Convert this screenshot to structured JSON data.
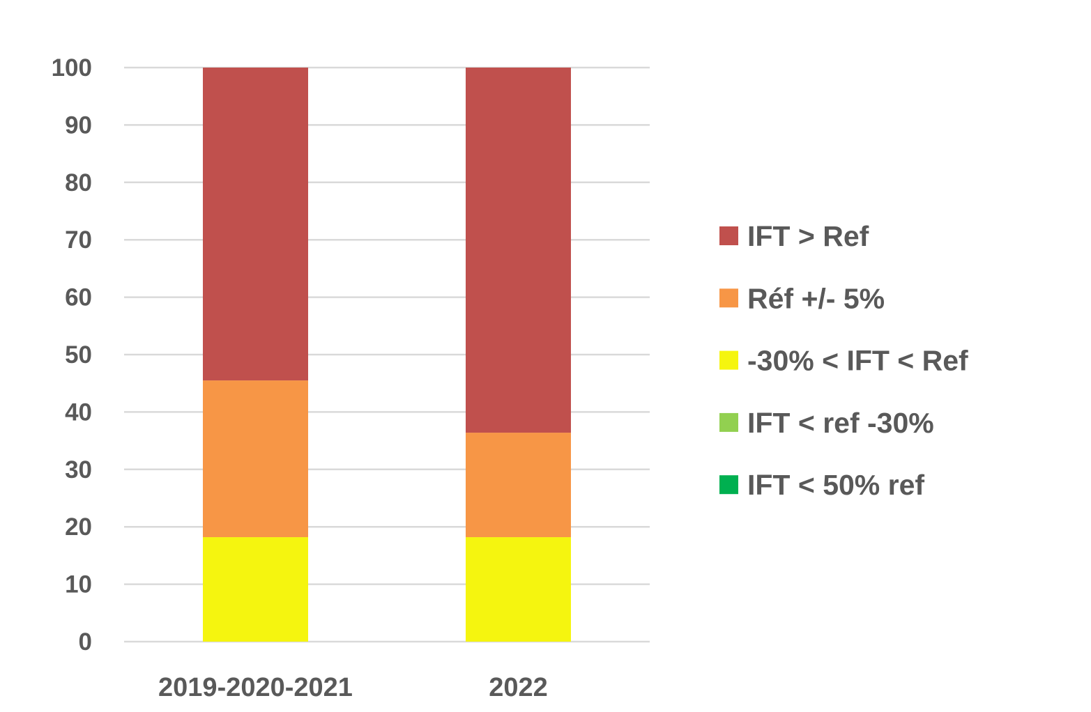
{
  "chart_data": {
    "type": "bar",
    "stacked": true,
    "title": "",
    "xlabel": "",
    "ylabel": "",
    "ylim": [
      0,
      100
    ],
    "yticks": [
      0,
      10,
      20,
      30,
      40,
      50,
      60,
      70,
      80,
      90,
      100
    ],
    "grid": true,
    "legend_position": "right",
    "categories": [
      "2019-2020-2021",
      "2022"
    ],
    "series": [
      {
        "name": "IFT < 50% ref",
        "color": "#00B050",
        "values": [
          0,
          0
        ]
      },
      {
        "name": "IFT < ref -30%",
        "color": "#92D050",
        "values": [
          0,
          0
        ]
      },
      {
        "name": "-30% < IFT < Ref",
        "color": "#F5F50F",
        "values": [
          18.2,
          18.2
        ]
      },
      {
        "name": "Réf +/- 5%",
        "color": "#F79646",
        "values": [
          27.3,
          18.2
        ]
      },
      {
        "name": "IFT > Ref",
        "color": "#C0504D",
        "values": [
          54.5,
          63.6
        ]
      }
    ],
    "legend_order": [
      "IFT > Ref",
      "Réf +/- 5%",
      "-30% < IFT < Ref",
      "IFT < ref -30%",
      "IFT < 50% ref"
    ]
  }
}
